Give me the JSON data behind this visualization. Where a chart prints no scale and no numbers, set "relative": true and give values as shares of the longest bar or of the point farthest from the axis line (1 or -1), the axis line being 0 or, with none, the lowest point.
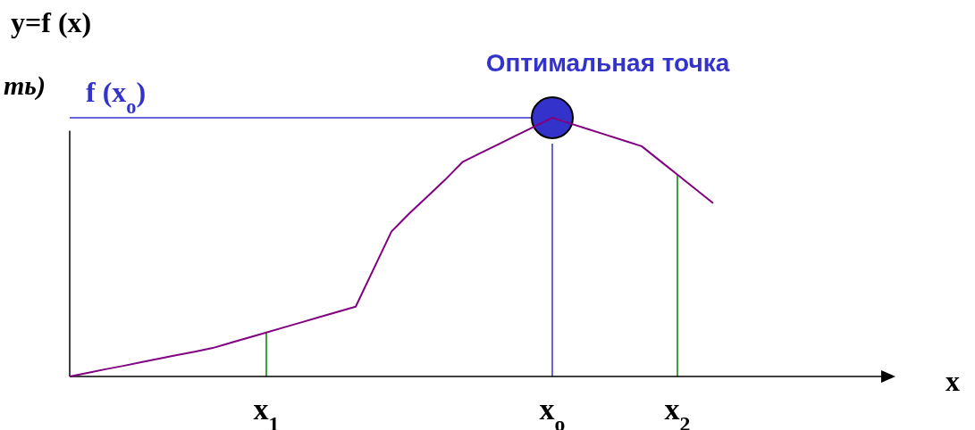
{
  "chart_data": {
    "type": "line",
    "relative": true,
    "ylabel": "y=f (x)",
    "xlabel": "x",
    "categories": [
      null,
      null,
      null,
      null,
      null,
      null,
      null,
      null,
      null,
      null,
      null,
      "x$_{1}$",
      null,
      null,
      null,
      null,
      null,
      null,
      null,
      null,
      null,
      null,
      null,
      null,
      null,
      null,
      null,
      "x$_{o}$",
      null,
      null,
      null,
      null,
      null,
      null,
      "x$_{2}$",
      null,
      null,
      null,
      null,
      null,
      null,
      null,
      null,
      null,
      null,
      null,
      null
    ],
    "annotations": [
      "ть)",
      {
        "text": "Оптимальная точка",
        "x": "x$_{o}$",
        "y": 1
      }
    ],
    "series": [
      {
        "color": "#800080",
        "marker": "none",
        "values": [
          0,
          0.014,
          0.028,
          0.041,
          0.055,
          0.069,
          0.083,
          0.096,
          0.11,
          0.13,
          0.15,
          0.17,
          0.19,
          0.21,
          0.23,
          0.25,
          0.27,
          0.415,
          0.56,
          0.63,
          0.695,
          0.76,
          0.83,
          0.864,
          0.898,
          0.932,
          0.966,
          1,
          0.978,
          0.956,
          0.934,
          0.912,
          0.89,
          0.835,
          0.78,
          0.725,
          0.67,
          null,
          null,
          null,
          null,
          null,
          null,
          null,
          null,
          null,
          null
        ]
      },
      {
        "type": "scatter",
        "color": "#3333cc",
        "marker": "circle",
        "x": [
          "x$_{o}$"
        ],
        "values": [
          1
        ]
      }
    ],
    "ref_lines": [
      {
        "axis": "y",
        "value": 1,
        "label": "f (x$_{o}$)",
        "color": "#3333cc"
      },
      {
        "axis": "x",
        "value": "x$_{1}$",
        "color": "#008000"
      },
      {
        "axis": "x",
        "value": "x$_{o}$",
        "color": "#3333cc"
      },
      {
        "axis": "x",
        "value": "x$_{2}$",
        "color": "#008000"
      }
    ]
  }
}
